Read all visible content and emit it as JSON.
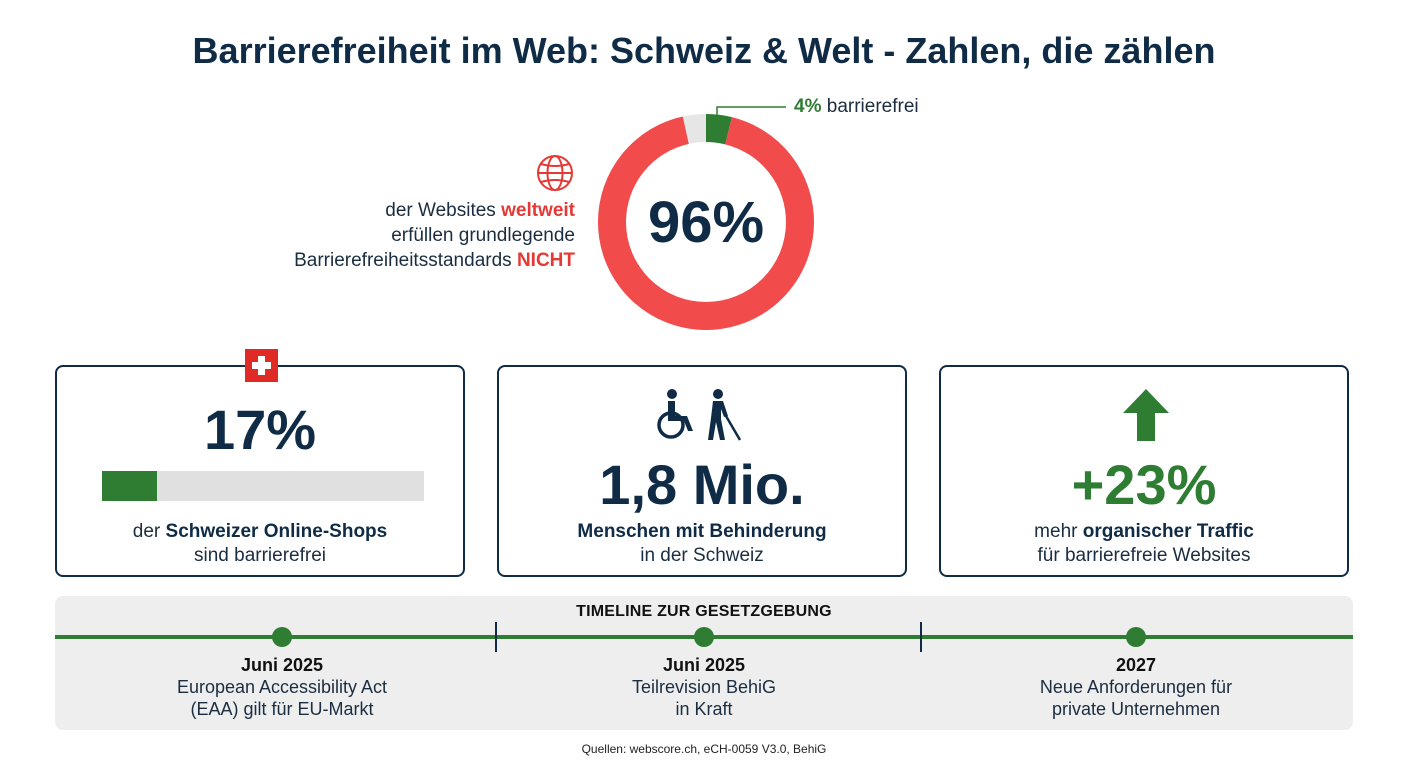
{
  "title": "Barrierefreiheit im Web: Schweiz & Welt - Zahlen, die zählen",
  "colors": {
    "navy": "#0f2b46",
    "red": "#f24b4b",
    "green": "#2e7d32",
    "gray": "#e6e6e6"
  },
  "chart_data": [
    {
      "type": "pie",
      "variant": "donut",
      "slices": [
        {
          "label": "nicht barrierefrei",
          "value": 96,
          "color": "#f24b4b"
        },
        {
          "label": "barrierefrei",
          "value": 4,
          "color": "#2e7d32"
        }
      ],
      "center_label": "96%",
      "callout": {
        "value": "4%",
        "text": "barrierefrei"
      },
      "description": {
        "part1": "der Websites ",
        "highlight1": "weltweit",
        "part2": "erfüllen grundlegende",
        "part3": "Barrierefreiheitsstandards ",
        "highlight2": "NICHT"
      },
      "icon": "globe-icon"
    },
    {
      "type": "bar",
      "variant": "progress",
      "value": 17,
      "max": 100,
      "display": "17%",
      "text_bold": "Schweizer Online-Shops",
      "text_pre": "der ",
      "text_line2": "sind barrierefrei",
      "icon": "swiss-flag-icon"
    }
  ],
  "cards": {
    "people": {
      "value": "1,8 Mio.",
      "text_bold": "Menschen mit Behinderung",
      "text_line2": "in der Schweiz",
      "icon": "disability-icon"
    },
    "traffic": {
      "value": "+23%",
      "text_pre": "mehr ",
      "text_bold": "organischer Traffic",
      "text_line2": "für barrierefreie Websites",
      "icon": "arrow-up-icon"
    }
  },
  "timeline": {
    "heading": "TIMELINE ZUR GESETZGEBUNG",
    "items": [
      {
        "date": "Juni 2025",
        "line1": "European Accessibility Act",
        "line2": "(EAA) gilt für EU-Markt"
      },
      {
        "date": "Juni 2025",
        "line1": "Teilrevision BehiG",
        "line2": "in Kraft"
      },
      {
        "date": "2027",
        "line1": "Neue Anforderungen für",
        "line2": "private Unternehmen"
      }
    ]
  },
  "sources": "Quellen: webscore.ch, eCH-0059 V3.0, BehiG"
}
